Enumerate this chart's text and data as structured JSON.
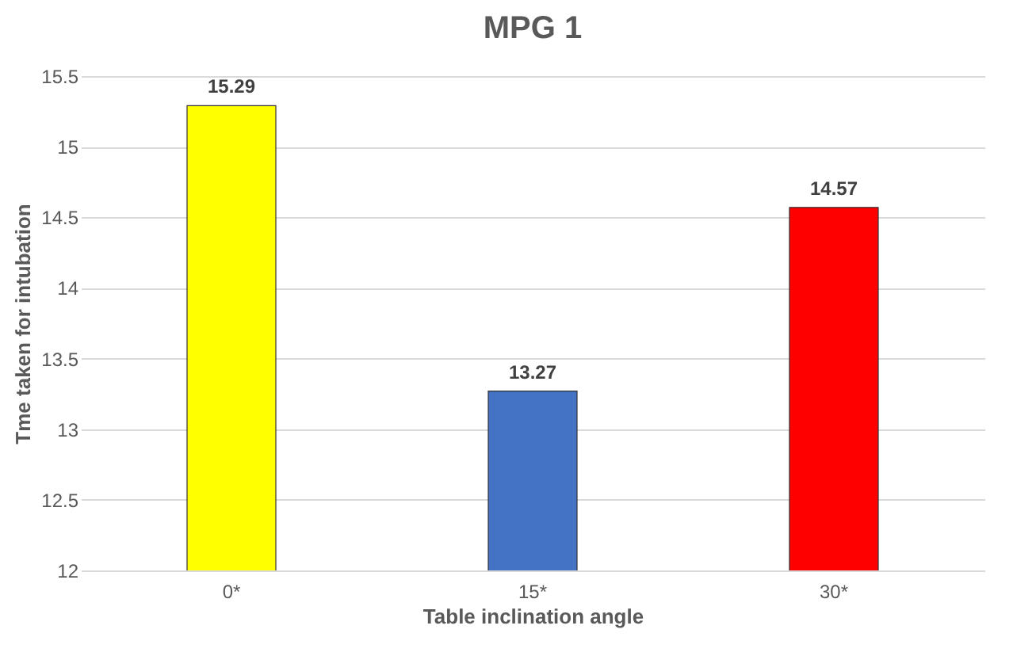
{
  "chart_data": {
    "type": "bar",
    "title": "MPG 1",
    "xlabel": "Table inclination angle",
    "ylabel": "Tme taken for intubation",
    "categories": [
      "0*",
      "15*",
      "30*"
    ],
    "values": [
      15.29,
      13.27,
      14.57
    ],
    "colors": [
      "#ffff00",
      "#4472c4",
      "#ff0000"
    ],
    "ylim": [
      12,
      15.5
    ],
    "yticks": [
      12,
      12.5,
      13,
      13.5,
      14,
      14.5,
      15,
      15.5
    ],
    "grid": "y",
    "data_labels": true
  }
}
